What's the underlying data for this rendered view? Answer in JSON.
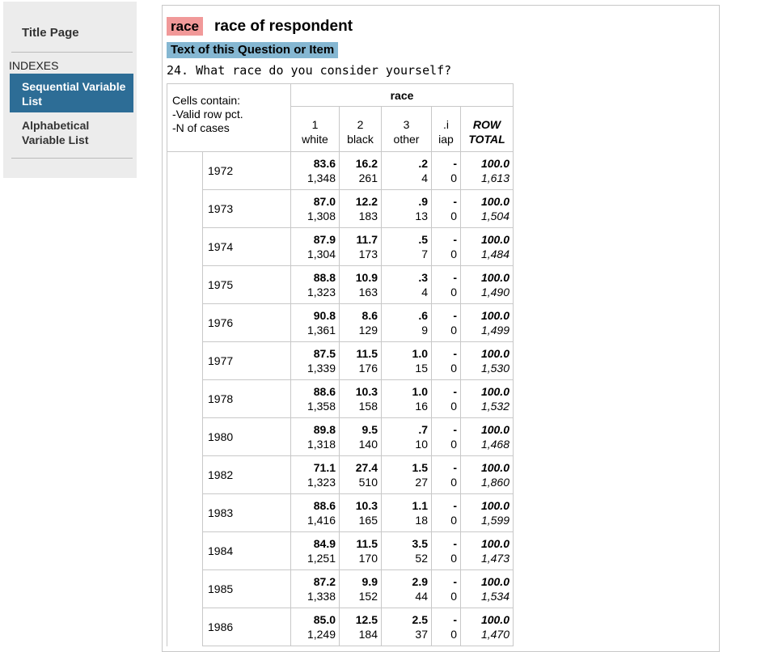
{
  "sidebar": {
    "title_page": "Title Page",
    "indexes_heading": "INDEXES",
    "items": [
      {
        "label": "Sequential Variable List",
        "active": true
      },
      {
        "label": "Alphabetical Variable List",
        "active": false
      }
    ]
  },
  "variable": {
    "name": "race",
    "label": "race of respondent",
    "text_section_label": "Text of this Question or Item",
    "question": "24. What race do you consider yourself?"
  },
  "table": {
    "var_header": "race",
    "cells_contain": [
      "Cells contain:",
      "-Valid row pct.",
      "-N of cases"
    ],
    "columns": [
      {
        "code": "1",
        "label": "white"
      },
      {
        "code": "2",
        "label": "black"
      },
      {
        "code": "3",
        "label": "other"
      },
      {
        "code": ".i",
        "label": "iap"
      },
      {
        "code": "ROW",
        "label": "TOTAL"
      }
    ],
    "rows": [
      {
        "year": "1972",
        "cells": [
          [
            "83.6",
            "1,348"
          ],
          [
            "16.2",
            "261"
          ],
          [
            ".2",
            "4"
          ],
          [
            "-",
            "0"
          ],
          [
            "100.0",
            "1,613"
          ]
        ]
      },
      {
        "year": "1973",
        "cells": [
          [
            "87.0",
            "1,308"
          ],
          [
            "12.2",
            "183"
          ],
          [
            ".9",
            "13"
          ],
          [
            "-",
            "0"
          ],
          [
            "100.0",
            "1,504"
          ]
        ]
      },
      {
        "year": "1974",
        "cells": [
          [
            "87.9",
            "1,304"
          ],
          [
            "11.7",
            "173"
          ],
          [
            ".5",
            "7"
          ],
          [
            "-",
            "0"
          ],
          [
            "100.0",
            "1,484"
          ]
        ]
      },
      {
        "year": "1975",
        "cells": [
          [
            "88.8",
            "1,323"
          ],
          [
            "10.9",
            "163"
          ],
          [
            ".3",
            "4"
          ],
          [
            "-",
            "0"
          ],
          [
            "100.0",
            "1,490"
          ]
        ]
      },
      {
        "year": "1976",
        "cells": [
          [
            "90.8",
            "1,361"
          ],
          [
            "8.6",
            "129"
          ],
          [
            ".6",
            "9"
          ],
          [
            "-",
            "0"
          ],
          [
            "100.0",
            "1,499"
          ]
        ]
      },
      {
        "year": "1977",
        "cells": [
          [
            "87.5",
            "1,339"
          ],
          [
            "11.5",
            "176"
          ],
          [
            "1.0",
            "15"
          ],
          [
            "-",
            "0"
          ],
          [
            "100.0",
            "1,530"
          ]
        ]
      },
      {
        "year": "1978",
        "cells": [
          [
            "88.6",
            "1,358"
          ],
          [
            "10.3",
            "158"
          ],
          [
            "1.0",
            "16"
          ],
          [
            "-",
            "0"
          ],
          [
            "100.0",
            "1,532"
          ]
        ]
      },
      {
        "year": "1980",
        "cells": [
          [
            "89.8",
            "1,318"
          ],
          [
            "9.5",
            "140"
          ],
          [
            ".7",
            "10"
          ],
          [
            "-",
            "0"
          ],
          [
            "100.0",
            "1,468"
          ]
        ]
      },
      {
        "year": "1982",
        "cells": [
          [
            "71.1",
            "1,323"
          ],
          [
            "27.4",
            "510"
          ],
          [
            "1.5",
            "27"
          ],
          [
            "-",
            "0"
          ],
          [
            "100.0",
            "1,860"
          ]
        ]
      },
      {
        "year": "1983",
        "cells": [
          [
            "88.6",
            "1,416"
          ],
          [
            "10.3",
            "165"
          ],
          [
            "1.1",
            "18"
          ],
          [
            "-",
            "0"
          ],
          [
            "100.0",
            "1,599"
          ]
        ]
      },
      {
        "year": "1984",
        "cells": [
          [
            "84.9",
            "1,251"
          ],
          [
            "11.5",
            "170"
          ],
          [
            "3.5",
            "52"
          ],
          [
            "-",
            "0"
          ],
          [
            "100.0",
            "1,473"
          ]
        ]
      },
      {
        "year": "1985",
        "cells": [
          [
            "87.2",
            "1,338"
          ],
          [
            "9.9",
            "152"
          ],
          [
            "2.9",
            "44"
          ],
          [
            "-",
            "0"
          ],
          [
            "100.0",
            "1,534"
          ]
        ]
      },
      {
        "year": "1986",
        "cells": [
          [
            "85.0",
            "1,249"
          ],
          [
            "12.5",
            "184"
          ],
          [
            "2.5",
            "37"
          ],
          [
            "-",
            "0"
          ],
          [
            "100.0",
            "1,470"
          ]
        ]
      }
    ]
  },
  "colors": {
    "sidebar_bg": "#ececec",
    "sidebar_active": "#2d6d96",
    "var_tag": "#f19999",
    "text_label": "#85b7d2",
    "border": "#c8c8c8"
  }
}
